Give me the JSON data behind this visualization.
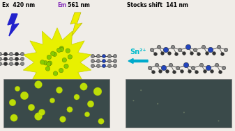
{
  "bg_color": "#f0ede8",
  "title_ex": "Ex  420 nm",
  "title_em": "  561 nm",
  "title_em_prefix": "Em",
  "title_stokes": "Stocks shift  141 nm",
  "sn_label": "Sn²⁺",
  "ex_color": "#2222cc",
  "em_color": "#eeee00",
  "sn_color": "#00bbcc",
  "arrow_color": "#00aacc",
  "burst_color": "#e8f000",
  "burst_edge": "#c8d000",
  "dot_color": "#88cc00",
  "micro_bg": "#3a4a4a",
  "micro_dot_color": "#ccee00",
  "molecule_gray": "#888888",
  "molecule_blue": "#2244bb",
  "molecule_dark": "#333333",
  "dot_positions_x": [
    25,
    55,
    85,
    120,
    140,
    18,
    45,
    75,
    100,
    130,
    20,
    55,
    90,
    125,
    145,
    35,
    110,
    60
  ],
  "dot_positions_y": [
    128,
    122,
    130,
    125,
    132,
    148,
    155,
    145,
    158,
    150,
    170,
    168,
    172,
    165,
    175,
    138,
    140,
    162
  ]
}
